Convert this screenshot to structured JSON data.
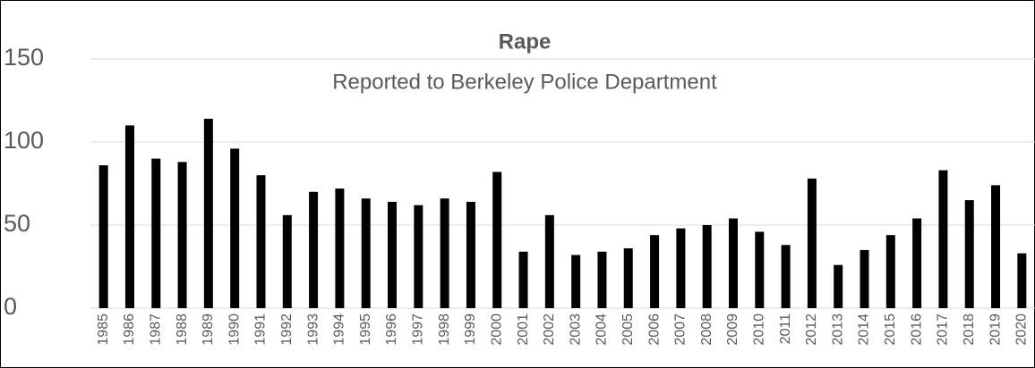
{
  "chart_data": {
    "type": "bar",
    "title": "Rape",
    "subtitle": "Reported to Berkeley Police Department",
    "categories": [
      "1985",
      "1986",
      "1987",
      "1988",
      "1989",
      "1990",
      "1991",
      "1992",
      "1993",
      "1994",
      "1995",
      "1996",
      "1997",
      "1998",
      "1999",
      "2000",
      "2001",
      "2002",
      "2003",
      "2004",
      "2005",
      "2006",
      "2007",
      "2008",
      "2009",
      "2010",
      "2011",
      "2012",
      "2013",
      "2014",
      "2015",
      "2016",
      "2017",
      "2018",
      "2019",
      "2020"
    ],
    "values": [
      86,
      110,
      90,
      88,
      114,
      96,
      80,
      56,
      70,
      72,
      66,
      64,
      62,
      66,
      64,
      82,
      34,
      56,
      32,
      34,
      36,
      44,
      48,
      50,
      54,
      46,
      38,
      78,
      26,
      35,
      44,
      54,
      83,
      65,
      74,
      33
    ],
    "color": "#000000",
    "ylim": [
      0,
      150
    ],
    "yticks": [
      0,
      50,
      100,
      150
    ],
    "grid": true
  }
}
